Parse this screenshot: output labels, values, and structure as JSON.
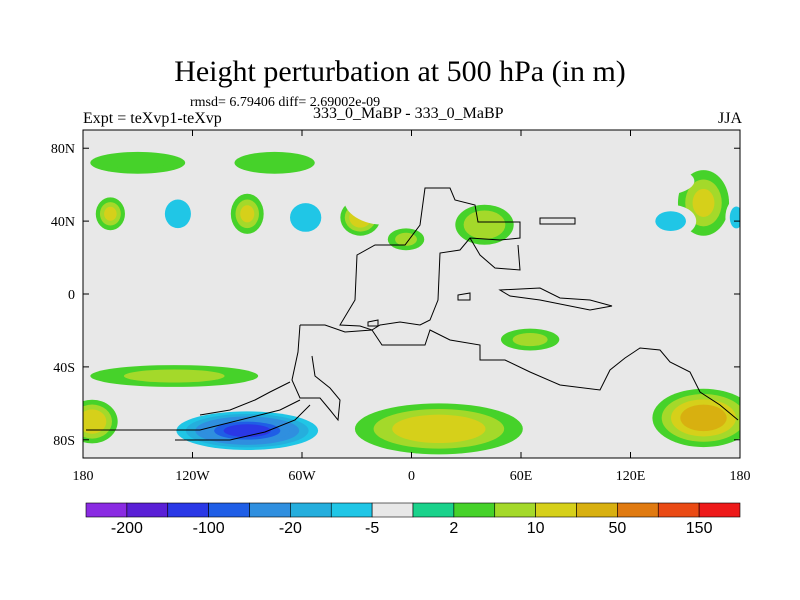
{
  "header": {
    "title": "Height perturbation at 500 hPa (in m)",
    "stats": "rmsd= 6.79406 diff= 2.69002e-09",
    "experiment": "Expt = teXvp1-teXvp",
    "pair": "333_0_MaBP - 333_0_MaBP",
    "season": "JJA"
  },
  "chart_data": {
    "type": "heatmap",
    "title": "Height perturbation at 500 hPa (in m)",
    "xlabel": "",
    "ylabel": "",
    "xlim": [
      -180,
      180
    ],
    "ylim": [
      -90,
      90
    ],
    "x_ticks": [
      {
        "value": -180,
        "label": "180"
      },
      {
        "value": -120,
        "label": "120W"
      },
      {
        "value": -60,
        "label": "60W"
      },
      {
        "value": 0,
        "label": "0"
      },
      {
        "value": 60,
        "label": "60E"
      },
      {
        "value": 120,
        "label": "120E"
      },
      {
        "value": 180,
        "label": "180"
      }
    ],
    "y_ticks": [
      {
        "value": 80,
        "label": "80N"
      },
      {
        "value": 40,
        "label": "40N"
      },
      {
        "value": 0,
        "label": "0"
      },
      {
        "value": -40,
        "label": "40S"
      },
      {
        "value": -80,
        "label": "80S"
      }
    ],
    "colorbar": {
      "levels": [
        -200,
        -100,
        -20,
        -5,
        2,
        10,
        50,
        150
      ],
      "tick_labels": [
        "-200",
        "-100",
        "-20",
        "-5",
        "2",
        "10",
        "50",
        "150"
      ],
      "colors": [
        "#8a2be2",
        "#5a1fd6",
        "#2a38e6",
        "#1f5ee6",
        "#2f8fdf",
        "#25aedd",
        "#20c6e6",
        "#e8e8e8",
        "#1ad28b",
        "#46d22a",
        "#a4d92a",
        "#d6d01a",
        "#d8b010",
        "#e07a10",
        "#ea4a14",
        "#ee1a1a"
      ]
    },
    "features": [
      {
        "lon": -28,
        "lat": 42,
        "value": 16,
        "rx": 11,
        "ry": 10
      },
      {
        "lon": -90,
        "lat": 44,
        "value": 12,
        "rx": 9,
        "ry": 11
      },
      {
        "lon": -165,
        "lat": 44,
        "value": 12,
        "rx": 8,
        "ry": 9
      },
      {
        "lon": 160,
        "lat": 50,
        "value": 12,
        "rx": 14,
        "ry": 18
      },
      {
        "lon": 40,
        "lat": 38,
        "value": 8,
        "rx": 16,
        "ry": 11
      },
      {
        "lon": -3,
        "lat": 30,
        "value": 6,
        "rx": 10,
        "ry": 6
      },
      {
        "lon": -128,
        "lat": 44,
        "value": -8,
        "rx": 10,
        "ry": 11
      },
      {
        "lon": -58,
        "lat": 42,
        "value": -8,
        "rx": 12,
        "ry": 11
      },
      {
        "lon": 142,
        "lat": 40,
        "value": -6,
        "rx": 14,
        "ry": 9
      },
      {
        "lon": 178,
        "lat": 42,
        "value": -6,
        "rx": 6,
        "ry": 10
      },
      {
        "lon": 50,
        "lat": 62,
        "value": -4,
        "rx": 24,
        "ry": 8
      },
      {
        "lon": 135,
        "lat": 62,
        "value": -4,
        "rx": 20,
        "ry": 8
      },
      {
        "lon": -15,
        "lat": 52,
        "value": -3,
        "rx": 22,
        "ry": 14
      },
      {
        "lon": -150,
        "lat": 72,
        "value": 4,
        "rx": 26,
        "ry": 6
      },
      {
        "lon": -75,
        "lat": 72,
        "value": 4,
        "rx": 22,
        "ry": 6
      },
      {
        "lon": -110,
        "lat": -35,
        "value": -5,
        "rx": 32,
        "ry": 8
      },
      {
        "lon": 20,
        "lat": -38,
        "value": -4,
        "rx": 36,
        "ry": 8
      },
      {
        "lon": 90,
        "lat": -40,
        "value": -4,
        "rx": 22,
        "ry": 7
      },
      {
        "lon": 65,
        "lat": -25,
        "value": 6,
        "rx": 16,
        "ry": 6
      },
      {
        "lon": -130,
        "lat": -45,
        "value": 6,
        "rx": 46,
        "ry": 6
      },
      {
        "lon": -90,
        "lat": -75,
        "value": -150,
        "rx": 44,
        "ry": 12
      },
      {
        "lon": -175,
        "lat": -70,
        "value": 20,
        "rx": 14,
        "ry": 12
      },
      {
        "lon": 15,
        "lat": -74,
        "value": 25,
        "rx": 46,
        "ry": 14
      },
      {
        "lon": 160,
        "lat": -68,
        "value": 40,
        "rx": 28,
        "ry": 16
      }
    ]
  }
}
